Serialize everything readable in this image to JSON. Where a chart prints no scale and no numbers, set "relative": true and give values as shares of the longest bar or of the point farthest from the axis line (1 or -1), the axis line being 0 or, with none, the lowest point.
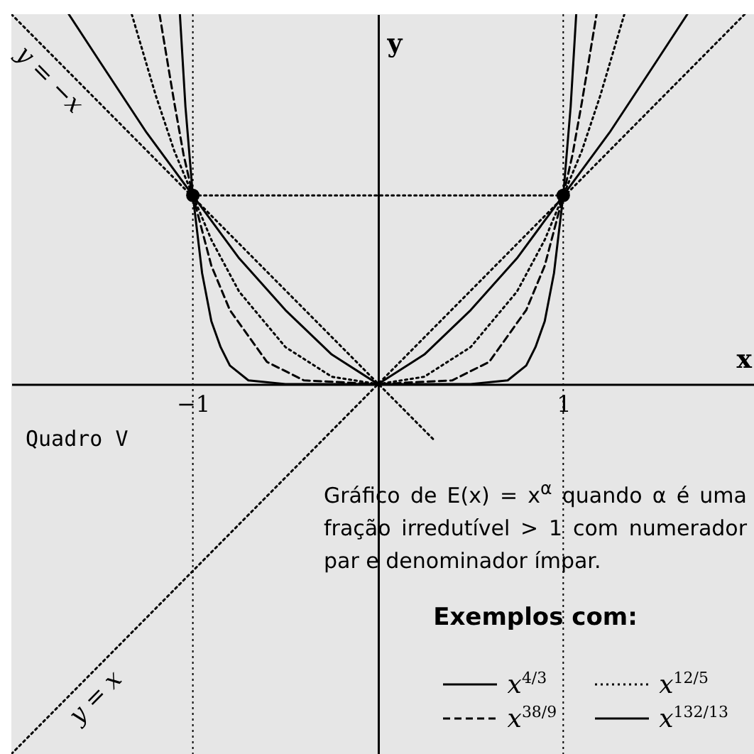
{
  "chart_data": {
    "type": "line",
    "relative": true,
    "xlabel": "x",
    "ylabel": "y",
    "xlim": [
      -1.98,
      2.03
    ],
    "xticks": [
      {
        "value": -1,
        "label": "−1"
      },
      1
    ],
    "legend": "bottom right",
    "grid": false,
    "ref_lines": [
      {
        "axis": "x",
        "value": -1,
        "line_style": "dotted",
        "color": "#000000"
      },
      {
        "axis": "x",
        "value": 1,
        "line_style": "dotted",
        "color": "#000000"
      }
    ],
    "series": [
      {
        "name": "x$^{4/3}$",
        "color": "#000000",
        "line_style": "solid",
        "x": [
          -1.67,
          -1.5,
          -1.25,
          -1,
          -0.75,
          -0.5,
          -0.25,
          0,
          0.25,
          0.5,
          0.75,
          1,
          1.25,
          1.5,
          1.67
        ],
        "values": [
          1,
          0.87,
          0.68,
          0.51,
          0.34,
          0.2,
          0.08,
          0,
          0.08,
          0.2,
          0.34,
          0.51,
          0.68,
          0.87,
          1
        ]
      },
      {
        "name": "x$^{38/9}$",
        "color": "#000000",
        "line_style": "dashed",
        "x": [
          -1.18,
          -1.1,
          -1.05,
          -1,
          -0.9,
          -0.8,
          -0.6,
          -0.4,
          0,
          0.4,
          0.6,
          0.8,
          0.9,
          1,
          1.05,
          1.1,
          1.18
        ],
        "values": [
          1,
          0.76,
          0.62,
          0.51,
          0.32,
          0.2,
          0.06,
          0.01,
          0,
          0.01,
          0.06,
          0.2,
          0.32,
          0.51,
          0.62,
          0.76,
          1
        ]
      },
      {
        "name": "x$^{12/5}$",
        "color": "#000000",
        "line_style": "dotted",
        "x": [
          -1.33,
          -1.2,
          -1.1,
          -1,
          -0.9,
          -0.75,
          -0.5,
          -0.25,
          0,
          0.25,
          0.5,
          0.75,
          0.9,
          1,
          1.1,
          1.2,
          1.33
        ],
        "values": [
          1,
          0.78,
          0.63,
          0.51,
          0.39,
          0.25,
          0.1,
          0.02,
          0,
          0.02,
          0.1,
          0.25,
          0.39,
          0.51,
          0.63,
          0.78,
          1
        ]
      },
      {
        "name": "x$^{132/13}$",
        "color": "#000000",
        "line_style": "solid",
        "x": [
          -1.07,
          -1.04,
          -1,
          -0.95,
          -0.9,
          -0.85,
          -0.8,
          -0.7,
          -0.5,
          0,
          0.5,
          0.7,
          0.8,
          0.85,
          0.9,
          0.95,
          1,
          1.04,
          1.07
        ],
        "values": [
          1,
          0.75,
          0.51,
          0.3,
          0.17,
          0.1,
          0.05,
          0.01,
          0,
          0,
          0,
          0.01,
          0.05,
          0.1,
          0.17,
          0.3,
          0.51,
          0.75,
          1
        ]
      },
      {
        "type": "line",
        "color": "#000000",
        "line_style": "dotted",
        "x": [
          -1.98,
          1.98
        ],
        "values": [
          -1,
          1
        ]
      },
      {
        "type": "line",
        "color": "#000000",
        "line_style": "dotted",
        "x": [
          -1.98,
          0.3
        ],
        "values": [
          1,
          -0.15
        ]
      },
      {
        "type": "line",
        "color": "#000000",
        "line_style": "dotted",
        "x": [
          -1,
          1
        ],
        "values": [
          0.51,
          0.51
        ]
      },
      {
        "type": "scatter",
        "color": "#000000",
        "marker": "circle",
        "x": [
          -1,
          1
        ],
        "values": [
          0.51,
          0.51
        ]
      }
    ],
    "annotations": [
      {
        "text": "y = −x",
        "x": -1.7,
        "y": 0.86
      },
      {
        "text": "y = x",
        "x": -1.6,
        "y": -0.81
      },
      "Quadro V",
      "Gráfico de E(x) = x$^{α}$ quando α é uma fração irredutível > 1 com numerador par e denominador ímpar.",
      "Exemplos com:"
    ]
  }
}
